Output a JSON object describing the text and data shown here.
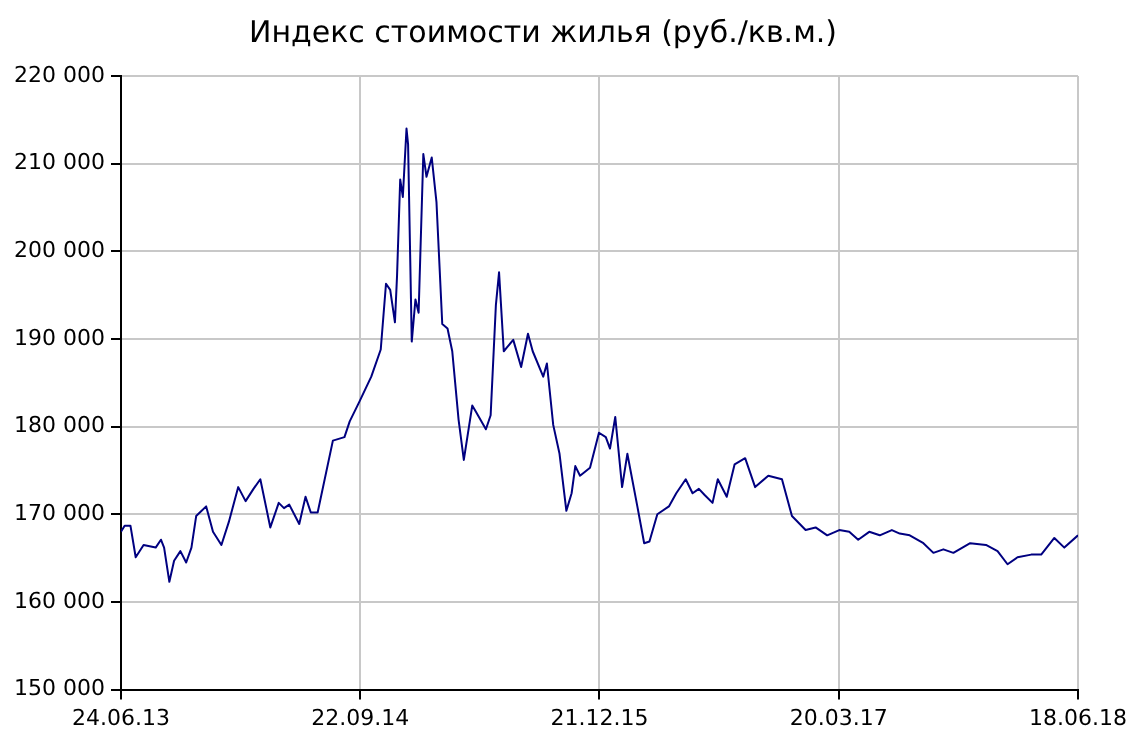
{
  "chart_data": {
    "type": "line",
    "title": "Индекс стоимости жилья (руб./кв.м.)",
    "x": [
      "2013-06-24",
      "2013-07-01",
      "2013-07-12",
      "2013-07-22",
      "2013-08-06",
      "2013-08-29",
      "2013-09-08",
      "2013-09-14",
      "2013-09-24",
      "2013-10-03",
      "2013-10-15",
      "2013-10-26",
      "2013-11-05",
      "2013-11-14",
      "2013-12-03",
      "2013-12-16",
      "2014-01-01",
      "2014-01-15",
      "2014-02-02",
      "2014-02-16",
      "2014-03-03",
      "2014-03-16",
      "2014-04-04",
      "2014-04-20",
      "2014-04-30",
      "2014-05-10",
      "2014-05-29",
      "2014-06-10",
      "2014-06-20",
      "2014-07-03",
      "2014-08-01",
      "2014-08-23",
      "2014-09-02",
      "2014-09-20",
      "2014-10-13",
      "2014-10-31",
      "2014-11-10",
      "2014-11-18",
      "2014-11-27",
      "2014-12-01",
      "2014-12-07",
      "2014-12-12",
      "2014-12-19",
      "2014-12-22",
      "2014-12-29",
      "2015-01-05",
      "2015-01-11",
      "2015-01-20",
      "2015-01-26",
      "2015-02-05",
      "2015-02-14",
      "2015-02-25",
      "2015-03-07",
      "2015-03-16",
      "2015-03-28",
      "2015-04-07",
      "2015-04-23",
      "2015-04-30",
      "2015-05-19",
      "2015-05-28",
      "2015-06-07",
      "2015-06-13",
      "2015-06-22",
      "2015-07-10",
      "2015-07-25",
      "2015-08-07",
      "2015-08-16",
      "2015-09-05",
      "2015-09-12",
      "2015-09-24",
      "2015-10-06",
      "2015-10-19",
      "2015-10-29",
      "2015-11-05",
      "2015-11-14",
      "2015-12-03",
      "2015-12-20",
      "2016-01-02",
      "2016-01-10",
      "2016-01-20",
      "2016-02-02",
      "2016-02-12",
      "2016-03-02",
      "2016-03-15",
      "2016-03-25",
      "2016-04-09",
      "2016-05-01",
      "2016-05-15",
      "2016-06-02",
      "2016-06-15",
      "2016-06-27",
      "2016-07-08",
      "2016-07-23",
      "2016-08-02",
      "2016-08-19",
      "2016-09-03",
      "2016-09-23",
      "2016-10-12",
      "2016-11-06",
      "2016-12-02",
      "2016-12-21",
      "2017-01-16",
      "2017-02-04",
      "2017-02-26",
      "2017-03-21",
      "2017-04-09",
      "2017-04-26",
      "2017-05-17",
      "2017-06-06",
      "2017-06-29",
      "2017-07-14",
      "2017-08-02",
      "2017-08-28",
      "2017-09-16",
      "2017-10-05",
      "2017-10-24",
      "2017-11-25",
      "2017-12-25",
      "2018-01-16",
      "2018-02-04",
      "2018-02-23",
      "2018-03-21",
      "2018-04-09",
      "2018-05-04",
      "2018-05-23",
      "2018-06-18"
    ],
    "series": [
      {
        "color": "#000080",
        "values": [
          168000,
          168700,
          168700,
          165100,
          166500,
          166200,
          167100,
          166200,
          162300,
          164700,
          165800,
          164500,
          166200,
          169800,
          170900,
          168000,
          166500,
          169100,
          173100,
          171500,
          172900,
          174000,
          168500,
          171300,
          170700,
          171100,
          168900,
          172000,
          170200,
          170200,
          178400,
          178800,
          180600,
          182800,
          185700,
          188800,
          196300,
          195600,
          191900,
          197200,
          208200,
          206200,
          214000,
          212200,
          189700,
          194500,
          193000,
          211100,
          208500,
          210700,
          205600,
          191700,
          191200,
          188600,
          180800,
          176200,
          182400,
          181700,
          179700,
          181300,
          193900,
          197600,
          188600,
          189900,
          186800,
          190600,
          188600,
          185700,
          187200,
          180200,
          176900,
          170400,
          172400,
          175500,
          174400,
          175300,
          179300,
          178800,
          177500,
          181100,
          173100,
          176900,
          170900,
          166700,
          166900,
          170000,
          170900,
          172400,
          174000,
          172400,
          172900,
          172200,
          171300,
          174000,
          172000,
          175700,
          176400,
          173100,
          174400,
          174000,
          169800,
          168200,
          168500,
          167600,
          168200,
          168000,
          167100,
          168000,
          167600,
          168200,
          167800,
          167600,
          166700,
          165600,
          166000,
          165600,
          166700,
          166500,
          165800,
          164300,
          165100,
          165400,
          165400,
          167300,
          166200,
          167600
        ]
      }
    ],
    "xlim": [
      "2013-06-24",
      "2018-06-18"
    ],
    "xticks": [
      {
        "value": "2013-06-24",
        "label": "24.06.13"
      },
      {
        "value": "2014-09-22",
        "label": "22.09.14"
      },
      {
        "value": "2015-12-21",
        "label": "21.12.15"
      },
      {
        "value": "2017-03-20",
        "label": "20.03.17"
      },
      {
        "value": "2018-06-18",
        "label": "18.06.18"
      }
    ],
    "ylim": [
      150000,
      220000
    ],
    "yticks": [
      {
        "value": 150000,
        "label": "150 000"
      },
      {
        "value": 160000,
        "label": "160 000"
      },
      {
        "value": 170000,
        "label": "170 000"
      },
      {
        "value": 180000,
        "label": "180 000"
      },
      {
        "value": 190000,
        "label": "190 000"
      },
      {
        "value": 200000,
        "label": "200 000"
      },
      {
        "value": 210000,
        "label": "210 000"
      },
      {
        "value": 220000,
        "label": "220 000"
      }
    ],
    "grid": true,
    "marker": "none"
  }
}
